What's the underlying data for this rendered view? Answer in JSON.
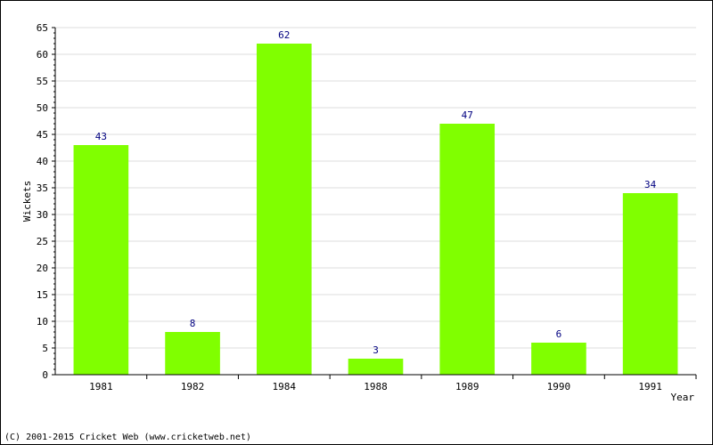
{
  "chart_data": {
    "type": "bar",
    "categories": [
      "1981",
      "1982",
      "1984",
      "1988",
      "1989",
      "1990",
      "1991"
    ],
    "values": [
      43,
      8,
      62,
      3,
      47,
      6,
      34
    ],
    "title": "",
    "xlabel": "Year",
    "ylabel": "Wickets",
    "ylim": [
      0,
      65
    ],
    "ytick_step": 5,
    "grid": true,
    "bar_color": "#80ff00",
    "value_label_color": "#000080"
  },
  "footer": {
    "text": "(C) 2001-2015 Cricket Web (www.cricketweb.net)"
  }
}
